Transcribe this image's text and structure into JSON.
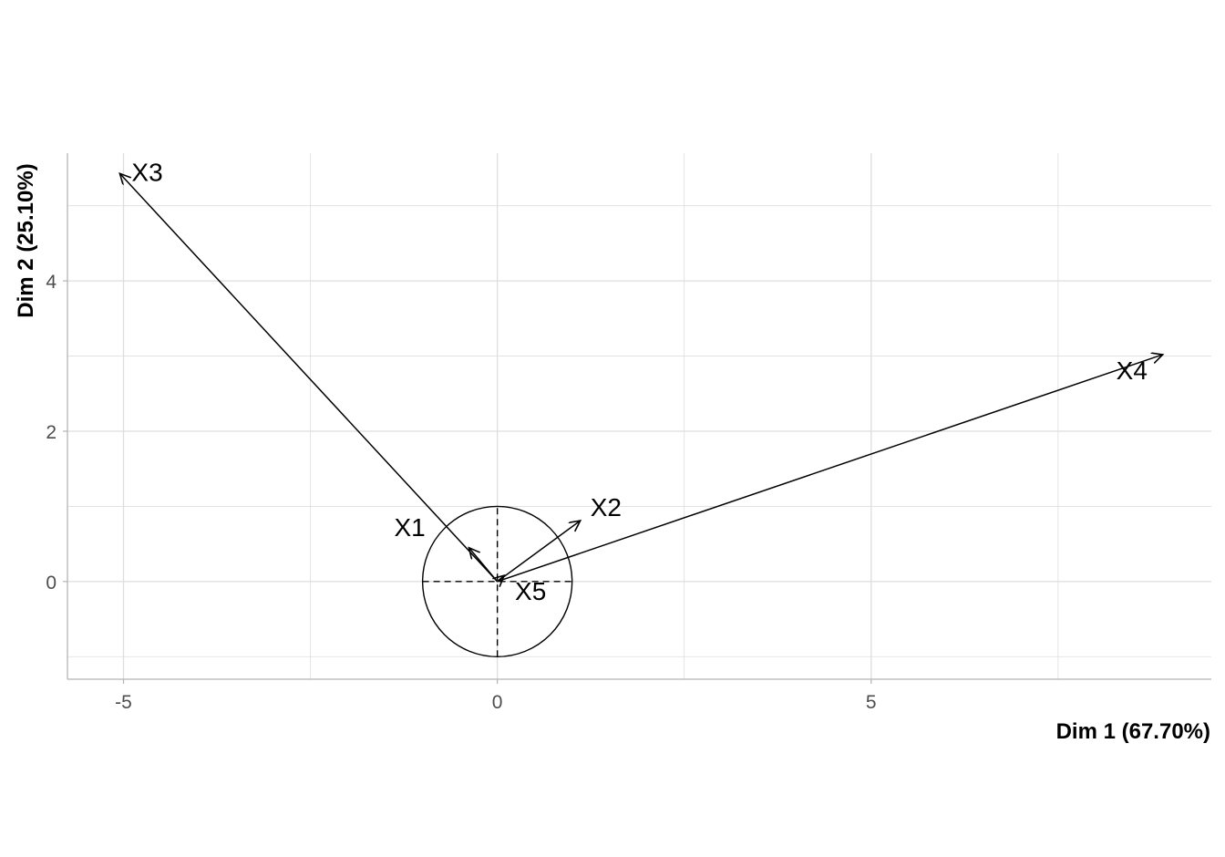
{
  "chart_data": {
    "type": "scatter",
    "subtype": "pca-variable-correlation-arrows",
    "xlabel": "Dim 1 (67.70%)",
    "ylabel": "Dim 2 (25.10%)",
    "xlim": [
      -5.75,
      9.55
    ],
    "ylim": [
      -1.3,
      5.7
    ],
    "x_ticks": [
      -5,
      0,
      5
    ],
    "x_tick_labels": [
      "-5",
      "0",
      "5"
    ],
    "y_ticks": [
      0,
      2,
      4
    ],
    "y_tick_labels": [
      "0",
      "2",
      "4"
    ],
    "grid": true,
    "legend": "none",
    "unit_circle": true,
    "variables": [
      {
        "name": "X1",
        "x": -0.38,
        "y": 0.45
      },
      {
        "name": "X2",
        "x": 1.11,
        "y": 0.81
      },
      {
        "name": "X3",
        "x": -5.05,
        "y": 5.43
      },
      {
        "name": "X4",
        "x": 8.9,
        "y": 3.02
      },
      {
        "name": "X5",
        "x": 0.09,
        "y": 0.08
      }
    ],
    "colors": {
      "arrow": "#000000",
      "grid": "#dedede",
      "panel_border": "#b3b3b3"
    }
  }
}
